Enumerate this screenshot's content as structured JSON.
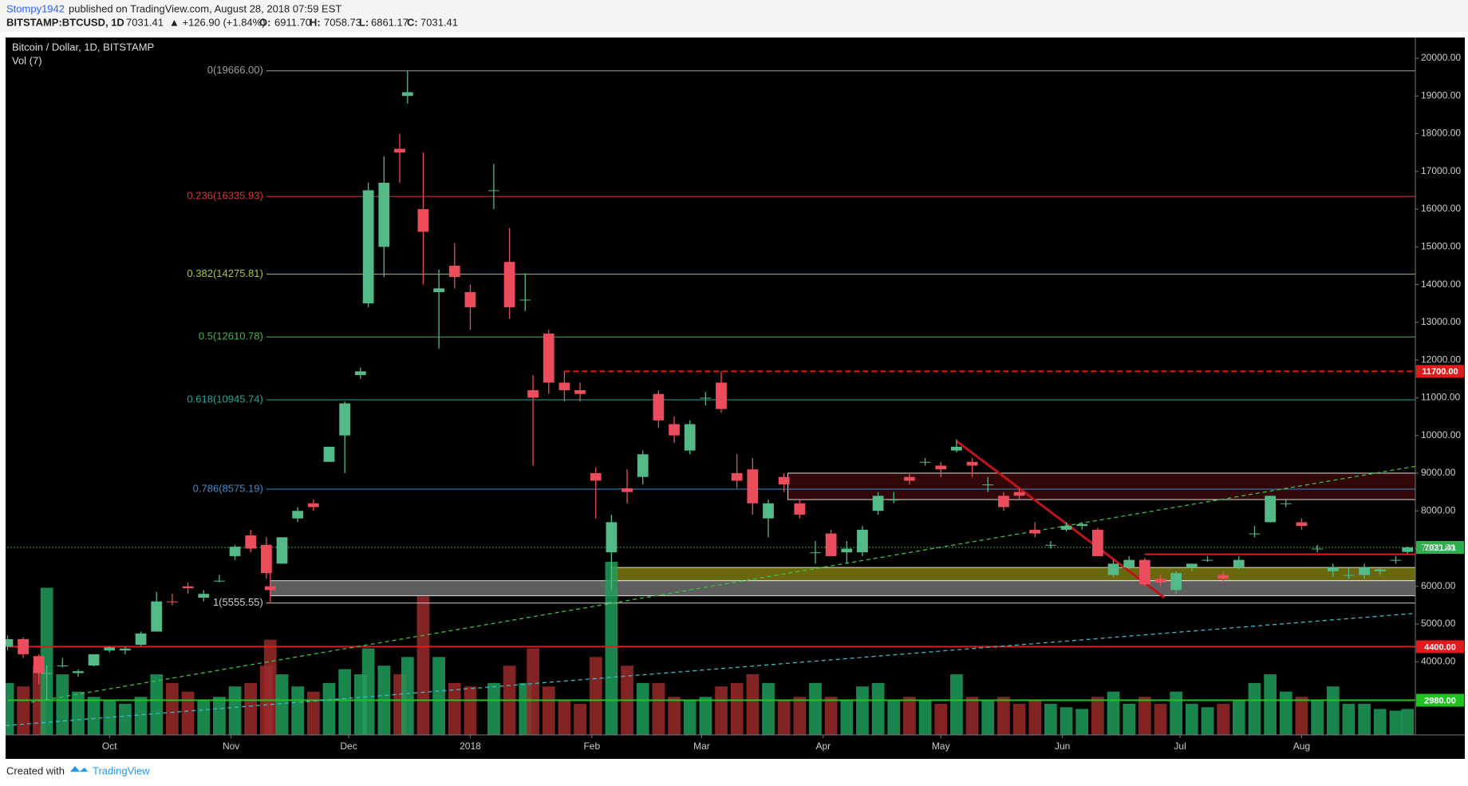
{
  "header": {
    "author": "Stompy1942",
    "published": "published on TradingView.com, August 28, 2018 07:59 EST",
    "symbol": "BITSTAMP:BTCUSD, 1D",
    "last": "7031.41",
    "change": "▲ +126.90 (+1.84%)",
    "open_label": "O:",
    "open": "6911.70",
    "high_label": "H:",
    "high": "7058.73",
    "low_label": "L:",
    "low": "6861.17",
    "close_label": "C:",
    "close": "7031.41"
  },
  "footer": {
    "created": "Created with",
    "brand": "TradingView"
  },
  "chart_data": {
    "type": "candlestick",
    "title": "Bitcoin / Dollar, 1D, BITSTAMP",
    "volume_label": "Vol (7)",
    "up_color": "#53b987",
    "down_color": "#eb4d5c",
    "volume_up_color": "#1f9d5a",
    "volume_down_color": "#9a2a2a",
    "x": [
      0,
      4,
      8,
      10,
      14,
      18,
      22,
      26,
      30,
      34,
      38,
      42,
      46,
      50,
      54,
      58,
      62,
      66,
      67,
      70,
      74,
      78,
      82,
      86,
      90,
      92,
      96,
      100,
      102,
      106,
      110,
      114,
      118,
      124,
      128,
      132,
      134,
      138,
      142,
      146,
      150,
      154,
      158,
      162,
      166,
      170,
      174,
      178,
      182,
      186,
      190,
      194,
      198,
      202,
      206,
      210,
      214,
      218,
      222,
      226,
      230,
      234,
      238,
      242,
      246,
      250,
      254,
      258,
      262,
      266,
      270,
      274,
      278,
      282,
      286,
      290,
      294,
      298,
      302,
      306,
      310,
      314,
      318,
      322,
      326,
      330,
      334,
      338,
      342,
      346,
      350,
      354,
      357
    ],
    "open": [
      4400,
      4600,
      4150,
      3700,
      3900,
      3700,
      3900,
      4300,
      4300,
      4450,
      4800,
      5600,
      6000,
      5700,
      6150,
      6800,
      7350,
      7100,
      6000,
      6600,
      7800,
      8200,
      9300,
      10000,
      11600,
      13500,
      15000,
      17600,
      19000,
      16000,
      13800,
      14500,
      13800,
      16500,
      14600,
      13600,
      11200,
      12700,
      11400,
      11200,
      9000,
      6900,
      8600,
      8900,
      11100,
      10300,
      9600,
      11000,
      11400,
      9000,
      9100,
      7800,
      8900,
      8200,
      6900,
      7400,
      6900,
      6900,
      8000,
      8300,
      8900,
      9300,
      9200,
      9600,
      9300,
      8700,
      8400,
      8500,
      7500,
      7100,
      7500,
      7600,
      7500,
      6300,
      6500,
      6700,
      6200,
      5900,
      6500,
      6700,
      6300,
      6500,
      7400,
      7700,
      8200,
      7700,
      7000,
      6400,
      6300,
      6300,
      6400,
      6700,
      6911.7
    ],
    "high": [
      4700,
      4650,
      4200,
      3900,
      4100,
      3800,
      4200,
      4400,
      4400,
      4800,
      5850,
      5800,
      6100,
      5900,
      6300,
      7100,
      7500,
      7300,
      6400,
      7300,
      8100,
      8300,
      9700,
      10900,
      11800,
      16700,
      17400,
      18000,
      19666,
      17500,
      14400,
      15100,
      14000,
      17200,
      15500,
      14300,
      11600,
      12800,
      11700,
      11400,
      9150,
      7900,
      9100,
      9600,
      11200,
      10500,
      10400,
      11150,
      11700,
      9500,
      9400,
      8300,
      9000,
      8300,
      7200,
      7500,
      7200,
      7600,
      8500,
      8500,
      9000,
      9400,
      9300,
      9900,
      9400,
      8900,
      8500,
      8600,
      7700,
      7200,
      7700,
      7700,
      7550,
      6700,
      6800,
      6750,
      6300,
      6400,
      6600,
      6800,
      6400,
      6800,
      7600,
      8400,
      8300,
      7800,
      7100,
      6600,
      6500,
      6600,
      6500,
      6800,
      7058.73
    ],
    "low": [
      4300,
      4100,
      3400,
      2980,
      3850,
      3600,
      3880,
      4250,
      4200,
      4420,
      4800,
      5500,
      5800,
      5600,
      6100,
      6700,
      6900,
      6200,
      5555,
      6600,
      7700,
      8000,
      9300,
      9000,
      11500,
      13400,
      14200,
      16700,
      18800,
      14000,
      12300,
      13900,
      12800,
      16000,
      13100,
      13300,
      9200,
      11100,
      10900,
      10900,
      7800,
      5900,
      8200,
      8700,
      10200,
      9800,
      9500,
      10800,
      10600,
      8600,
      7900,
      7300,
      8500,
      7800,
      6600,
      6800,
      6600,
      6800,
      7900,
      8200,
      8700,
      9200,
      8900,
      9550,
      8900,
      8500,
      8000,
      8300,
      7300,
      7000,
      7450,
      7500,
      6800,
      6250,
      6450,
      6000,
      6000,
      5800,
      6400,
      6650,
      6100,
      6450,
      7300,
      7700,
      8100,
      7500,
      6900,
      6250,
      6200,
      6200,
      6300,
      6600,
      6861.17
    ],
    "close": [
      4600,
      4200,
      3700,
      3700,
      3900,
      3750,
      4200,
      4380,
      4350,
      4750,
      5600,
      5580,
      5950,
      5800,
      6150,
      7050,
      7000,
      6350,
      5900,
      7300,
      8000,
      8100,
      9700,
      10850,
      11700,
      16500,
      16700,
      17500,
      19100,
      15400,
      13900,
      14200,
      13400,
      16500,
      13400,
      13600,
      11000,
      11400,
      11200,
      11100,
      8800,
      7700,
      8500,
      9500,
      10400,
      10000,
      10300,
      11000,
      10700,
      8800,
      8200,
      8200,
      8700,
      7900,
      6900,
      6800,
      7000,
      7500,
      8400,
      8300,
      8800,
      9300,
      9100,
      9700,
      9200,
      8700,
      8100,
      8400,
      7400,
      7100,
      7600,
      7650,
      6800,
      6600,
      6700,
      6050,
      6100,
      6350,
      6600,
      6700,
      6200,
      6700,
      7400,
      8400,
      8200,
      7600,
      7000,
      6500,
      6300,
      6500,
      6450,
      6700,
      7031.41
    ],
    "volume": [
      30,
      28,
      40,
      85,
      35,
      25,
      22,
      20,
      18,
      22,
      35,
      30,
      25,
      20,
      22,
      28,
      30,
      40,
      55,
      35,
      28,
      25,
      30,
      38,
      35,
      50,
      40,
      35,
      45,
      80,
      45,
      30,
      28,
      30,
      40,
      30,
      50,
      28,
      20,
      18,
      45,
      100,
      40,
      30,
      30,
      22,
      20,
      22,
      28,
      30,
      35,
      30,
      20,
      22,
      30,
      22,
      20,
      28,
      30,
      20,
      22,
      20,
      18,
      35,
      22,
      20,
      22,
      18,
      20,
      18,
      16,
      15,
      22,
      25,
      18,
      22,
      18,
      25,
      18,
      16,
      18,
      20,
      30,
      35,
      25,
      22,
      20,
      28,
      18,
      18,
      15,
      14,
      15
    ],
    "vlim": [
      0,
      100
    ],
    "xlim": [
      -0.5,
      359
    ],
    "xticks": [
      {
        "value": 26,
        "label": "Oct"
      },
      {
        "value": 57,
        "label": "Nov"
      },
      {
        "value": 87,
        "label": "Dec"
      },
      {
        "value": 118,
        "label": "2018"
      },
      {
        "value": 149,
        "label": "Feb"
      },
      {
        "value": 177,
        "label": "Mar"
      },
      {
        "value": 208,
        "label": "Apr"
      },
      {
        "value": 238,
        "label": "May"
      },
      {
        "value": 269,
        "label": "Jun"
      },
      {
        "value": 299,
        "label": "Jul"
      },
      {
        "value": 330,
        "label": "Aug"
      }
    ],
    "ylim": [
      2060,
      20550
    ],
    "yticks": [
      {
        "value": 4000,
        "label": "4000.00"
      },
      {
        "value": 5000,
        "label": "5000.00"
      },
      {
        "value": 6000,
        "label": "6000.00"
      },
      {
        "value": 7000,
        "label": "7000.00"
      },
      {
        "value": 8000,
        "label": "8000.00"
      },
      {
        "value": 9000,
        "label": "9000.00"
      },
      {
        "value": 10000,
        "label": "10000.00"
      },
      {
        "value": 11000,
        "label": "11000.00"
      },
      {
        "value": 12000,
        "label": "12000.00"
      },
      {
        "value": 13000,
        "label": "13000.00"
      },
      {
        "value": 14000,
        "label": "14000.00"
      },
      {
        "value": 15000,
        "label": "15000.00"
      },
      {
        "value": 16000,
        "label": "16000.00"
      },
      {
        "value": 17000,
        "label": "17000.00"
      },
      {
        "value": 18000,
        "label": "18000.00"
      },
      {
        "value": 19000,
        "label": "19000.00"
      },
      {
        "value": 20000,
        "label": "20000.00"
      }
    ],
    "fib_start": 66,
    "fib": [
      {
        "value": 19666,
        "label": "0(19666.00)",
        "color": "#9e9e9e"
      },
      {
        "value": 16335.93,
        "label": "0.236(16335.93)",
        "color": "#d0393b"
      },
      {
        "value": 14275.81,
        "label": "0.382(14275.81)",
        "color": "#a6c63c"
      },
      {
        "value": 12610.78,
        "label": "0.5(12610.78)",
        "color": "#4caf50"
      },
      {
        "value": 10945.74,
        "label": "0.618(10945.74)",
        "color": "#26a69a"
      },
      {
        "value": 8575.19,
        "label": "0.786(8575.19)",
        "color": "#3d8bc9"
      },
      {
        "value": 5555.55,
        "label": "1(5555.55)",
        "color": "#d0d0d0"
      }
    ],
    "price_lines": [
      {
        "value": 11700,
        "label": "11700.00",
        "color": "#e01b1b",
        "dash": true,
        "start": 142
      },
      {
        "value": 7031.41,
        "label": "7031.41",
        "color": "#2eae4e",
        "dash": true,
        "start": 0
      },
      {
        "value": 6850,
        "color": "#e01b1b",
        "dash": false,
        "start": 290
      },
      {
        "value": 4400,
        "label": "4400.00",
        "color": "#e01b1b",
        "dash": false,
        "start": 0
      },
      {
        "value": 2980,
        "label": "2980.00",
        "color": "#22c222",
        "dash": false,
        "start": 0
      }
    ],
    "zones": [
      {
        "low": 8300,
        "high": 9000,
        "start": 199,
        "color": "#3a0808"
      },
      {
        "low": 6150,
        "high": 6500,
        "start": 154,
        "color": "#7d7a10"
      },
      {
        "low": 5750,
        "high": 6150,
        "start": 67,
        "color": "#6e6e6e"
      }
    ],
    "trendlines": [
      {
        "x": [
          242,
          295
        ],
        "y": [
          9850,
          5700
        ],
        "color": "#c0141c",
        "dash": false
      },
      {
        "x": [
          6,
          359
        ],
        "y": [
          2928,
          9181
        ],
        "color": "#3fbf3f",
        "dash": true
      },
      {
        "x": [
          -0.5,
          359
        ],
        "y": [
          2308,
          5285
        ],
        "color": "#3fb7c9",
        "dash": true
      }
    ]
  }
}
